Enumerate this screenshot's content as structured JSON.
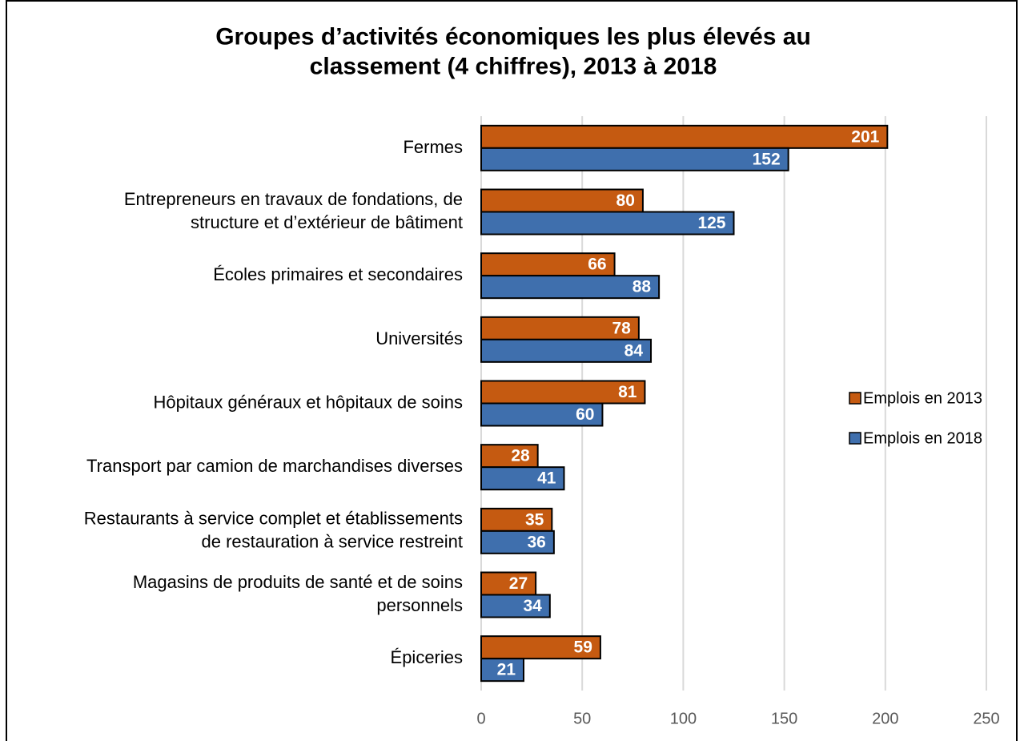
{
  "chart_data": {
    "type": "bar",
    "orientation": "horizontal",
    "title": "Groupes d’activités économiques les plus élevés au\nclassement (4 chiffres), 2013 à 2018",
    "categories": [
      "Fermes",
      "Entrepreneurs en travaux de fondations, de\nstructure et d’extérieur de bâtiment",
      "Écoles primaires et secondaires",
      "Universités",
      "Hôpitaux généraux et hôpitaux de soins",
      "Transport par camion de marchandises diverses",
      "Restaurants à service complet et établissements\nde restauration à service restreint",
      "Magasins de produits de santé et de soins\npersonnels",
      "Épiceries"
    ],
    "series": [
      {
        "name": "Emplois en 2013",
        "color": "#c55a11",
        "values": [
          201,
          80,
          66,
          78,
          81,
          28,
          35,
          27,
          59
        ]
      },
      {
        "name": "Emplois en 2018",
        "color": "#3f6fad",
        "values": [
          152,
          125,
          88,
          84,
          60,
          41,
          36,
          34,
          21
        ]
      }
    ],
    "xlim": [
      0,
      250
    ],
    "xticks": [
      0,
      50,
      100,
      150,
      200,
      250
    ],
    "grid": true,
    "legend": "right"
  }
}
